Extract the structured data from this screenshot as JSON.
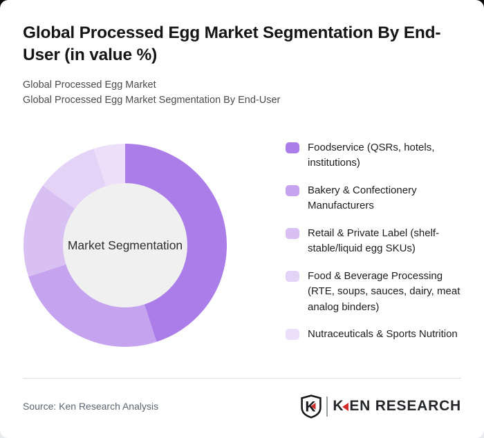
{
  "header": {
    "title": "Global Processed Egg Market Segmentation By End-User (in value %)",
    "subtitle_line1": "Global Processed Egg Market",
    "subtitle_line2": "Global Processed Egg Market Segmentation By End-User"
  },
  "chart_data": {
    "type": "pie",
    "variant": "donut",
    "title": "Global Processed Egg Market Segmentation By End-User (in value %)",
    "center_label": "Market Segmentation",
    "start_angle": "12-oclock",
    "direction": "clockwise",
    "inner_radius_ratio": 0.61,
    "legend_position": "right",
    "segments": [
      {
        "label": "Foodservice (QSRs, hotels, institutions)",
        "value": 45,
        "color": "#ab7de8"
      },
      {
        "label": "Bakery & Confectionery Manufacturers",
        "value": 25,
        "color": "#c5a3ee"
      },
      {
        "label": "Retail & Private Label (shelf-stable/liquid egg SKUs)",
        "value": 15,
        "color": "#d8c0f3"
      },
      {
        "label": "Food & Beverage Processing (RTE, soups, sauces, dairy, meat analog binders)",
        "value": 10,
        "color": "#e4d2f7"
      },
      {
        "label": "Nutraceuticals & Sports Nutrition",
        "value": 5,
        "color": "#eddffa"
      }
    ]
  },
  "footer": {
    "source": "Source: Ken Research Analysis",
    "logo": {
      "shield_letter": "K",
      "brand": "KEN RESEARCH",
      "brand_k": "K",
      "brand_rest": "EN RESEARCH",
      "accent_color": "#d02c2a",
      "text_color": "#25272a"
    }
  },
  "colors": {
    "card_background": "#ffffff",
    "center_circle": "#f0f0f0",
    "title_text": "#151515",
    "subtitle_text": "#4b4b4b",
    "source_text": "#5b6470",
    "divider": "#dcdfe3"
  }
}
